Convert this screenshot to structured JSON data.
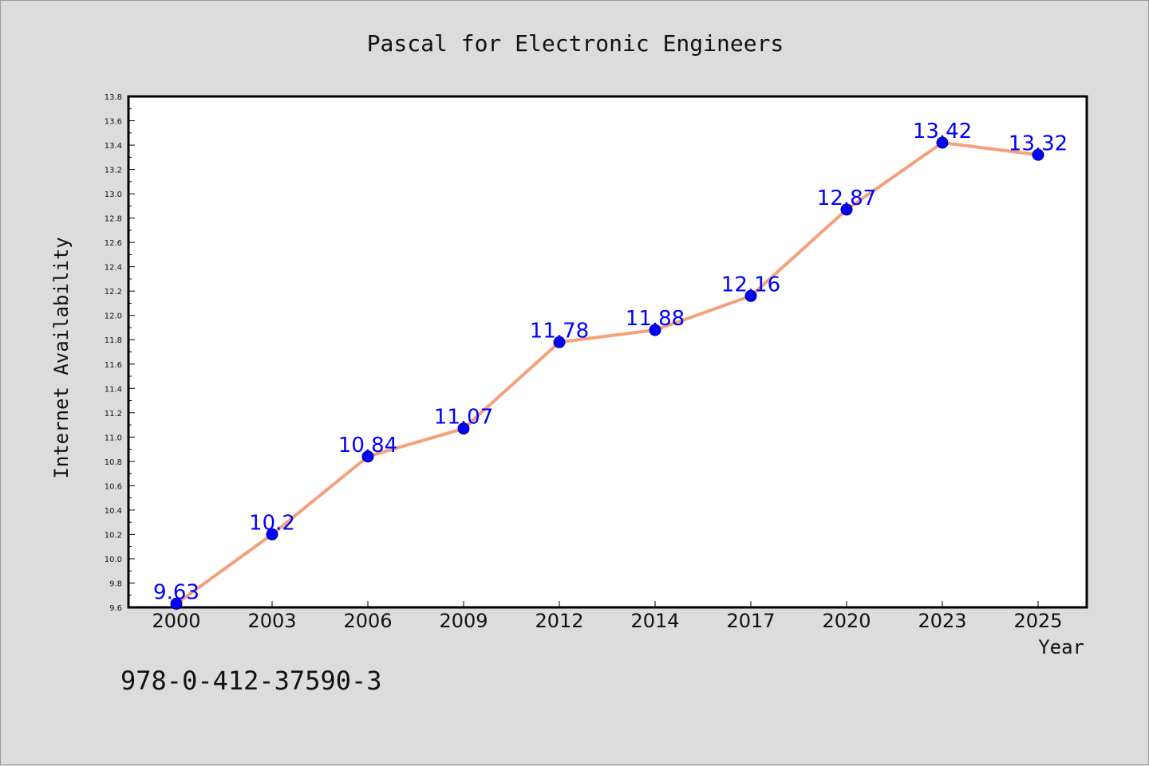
{
  "footer": {
    "isbn": "978-0-412-37590-3"
  },
  "colors": {
    "background": "#dcdcdc",
    "plot_bg": "#ffffff",
    "line": "#f4a07c",
    "marker": "#0000ff",
    "label": "#0000ff"
  },
  "chart_data": {
    "type": "line",
    "title": "Pascal for Electronic Engineers",
    "xlabel": "Year",
    "ylabel": "Internet Availability",
    "categories": [
      "2000",
      "2003",
      "2006",
      "2009",
      "2012",
      "2014",
      "2017",
      "2020",
      "2023",
      "2025"
    ],
    "series": [
      {
        "values": [
          9.63,
          10.2,
          10.84,
          11.07,
          11.78,
          11.88,
          12.16,
          12.87,
          13.42,
          13.32
        ]
      }
    ],
    "data_labels": [
      "9.63",
      "10.2",
      "10.84",
      "11.07",
      "11.78",
      "11.88",
      "12.16",
      "12.87",
      "13.42",
      "13.32"
    ],
    "ylim": [
      9.6,
      13.8
    ],
    "yticks": [
      "9.6",
      "9.8",
      "10.0",
      "10.2",
      "10.4",
      "10.6",
      "10.8",
      "11.0",
      "11.2",
      "11.4",
      "11.6",
      "11.8",
      "12.0",
      "12.2",
      "12.4",
      "12.6",
      "12.8",
      "13.0",
      "13.2",
      "13.4",
      "13.6",
      "13.8"
    ],
    "grid": false,
    "legend": "none"
  }
}
